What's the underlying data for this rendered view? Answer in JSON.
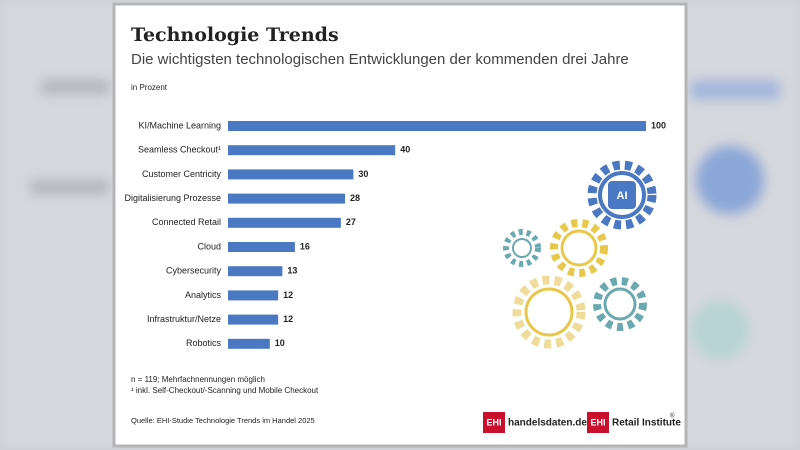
{
  "chart_data": {
    "type": "hbar",
    "title": "Technologie Trends",
    "subtitle": "Die wichtigsten technologischen Entwicklungen der kommenden drei Jahre",
    "unit_label": "in Prozent",
    "categories": [
      "KI/Machine Learning",
      "Seamless Checkout¹",
      "Customer Centricity",
      "Digitalisierung Prozesse",
      "Connected Retail",
      "Cloud",
      "Cybersecurity",
      "Analytics",
      "Infrastruktur/Netze",
      "Robotics"
    ],
    "values": [
      100,
      40,
      30,
      28,
      27,
      16,
      13,
      12,
      12,
      10
    ],
    "color": "#4a78c2",
    "xlim": [
      0,
      100
    ],
    "grid": false,
    "notes": [
      "n = 119; Mehrfachnennungen möglich",
      "¹ inkl. Self-Checkout/-Scanning und Mobile Checkout"
    ],
    "source": "Quelle: EHI-Studie Technologie Trends im Handel 2025",
    "illustration_label": "AI",
    "logos": [
      {
        "mark": "EHI",
        "text": "handelsdaten.de"
      },
      {
        "mark": "EHI",
        "text": "Retail Institute",
        "sup": "®"
      }
    ]
  }
}
